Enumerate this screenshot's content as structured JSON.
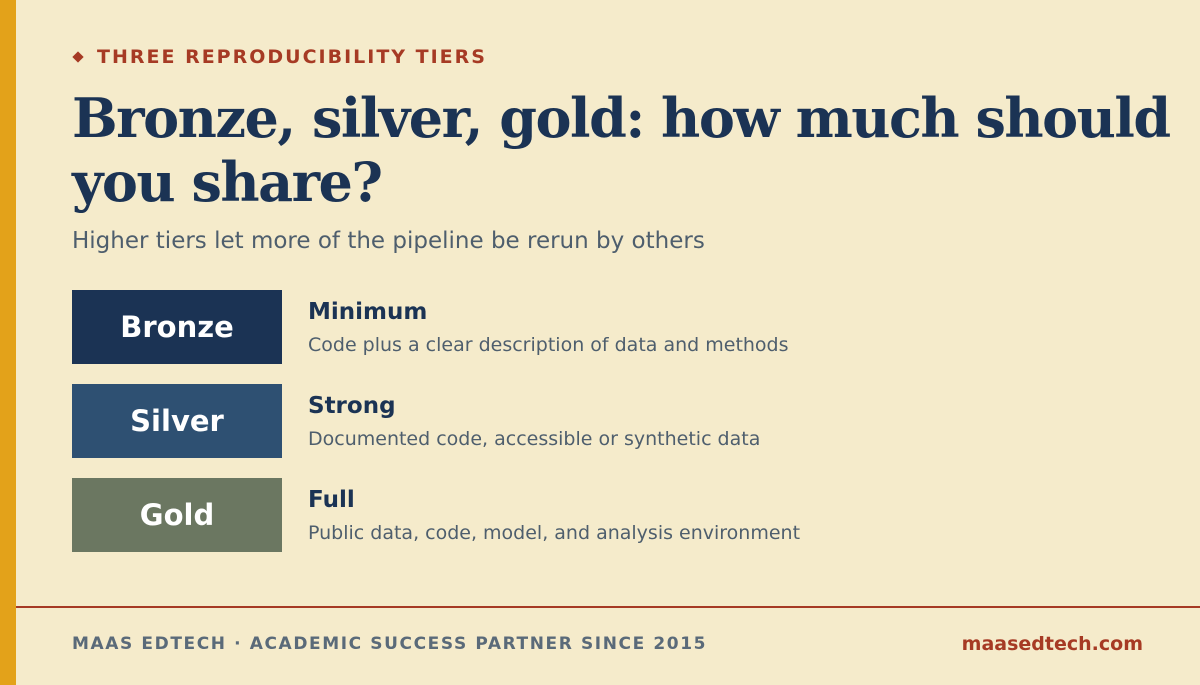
{
  "eyebrow": {
    "text": "THREE REPRODUCIBILITY TIERS",
    "marker_icon": "diamond-icon"
  },
  "title": "Bronze, silver, gold: how much should you share?",
  "subtitle": "Higher tiers let more of the pipeline be rerun by others",
  "tiers": [
    {
      "badge": "Bronze",
      "name": "Minimum",
      "description": "Code plus a clear description of data and methods",
      "color": "#1b3354"
    },
    {
      "badge": "Silver",
      "name": "Strong",
      "description": "Documented code, accessible or synthetic data",
      "color": "#2e5072"
    },
    {
      "badge": "Gold",
      "name": "Full",
      "description": "Public data, code, model, and analysis environment",
      "color": "#6b7761"
    }
  ],
  "footer": {
    "left": "MAAS EDTECH · ACADEMIC SUCCESS PARTNER SINCE 2015",
    "right": "maasedtech.com"
  },
  "colors": {
    "background": "#f5ebcb",
    "accent_bar": "#e3a21a",
    "accent_red": "#a63a24",
    "navy": "#1b3354",
    "muted_text": "#4e5e6d"
  }
}
